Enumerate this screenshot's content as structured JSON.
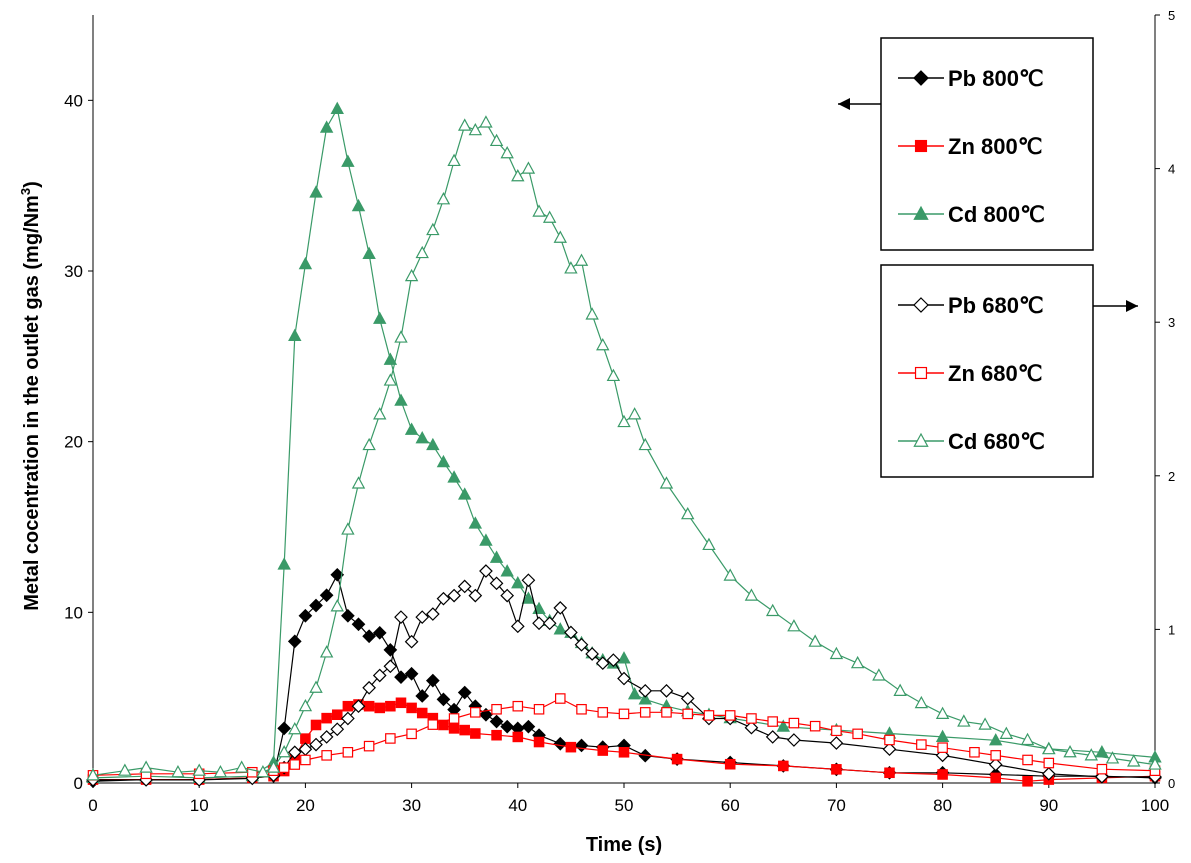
{
  "chart_data": {
    "type": "line",
    "xlabel": "Time (s)",
    "ylabel": "Metal cocentration in the outlet gas (mg/Nm",
    "ylabel_sup": "3",
    "ylabel_close": ")",
    "xlim": [
      0,
      100
    ],
    "ylim_left": [
      0,
      45
    ],
    "ylim_right": [
      0,
      5
    ],
    "x_ticks": [
      "0",
      "10",
      "20",
      "30",
      "40",
      "50",
      "60",
      "70",
      "80",
      "90",
      "100"
    ],
    "y_ticks_left": [
      "0",
      "10",
      "20",
      "30",
      "40"
    ],
    "y_ticks_right": [
      "0",
      "1",
      "2",
      "3",
      "4",
      "5"
    ],
    "legend_groups": [
      {
        "axis": "left",
        "entries": [
          "Pb 800℃",
          "Zn 800℃",
          "Cd 800℃"
        ]
      },
      {
        "axis": "right",
        "entries": [
          "Pb 680℃",
          "Zn 680℃",
          "Cd 680℃"
        ]
      }
    ],
    "series": [
      {
        "name": "Pb 800℃",
        "axis": "left",
        "color": "#000000",
        "marker": "diamond",
        "filled": true,
        "points": [
          [
            0,
            0.1
          ],
          [
            5,
            0.2
          ],
          [
            10,
            0.2
          ],
          [
            15,
            0.3
          ],
          [
            17,
            0.4
          ],
          [
            18,
            3.2
          ],
          [
            19,
            8.3
          ],
          [
            20,
            9.8
          ],
          [
            21,
            10.4
          ],
          [
            22,
            11.0
          ],
          [
            23,
            12.2
          ],
          [
            24,
            9.8
          ],
          [
            25,
            9.3
          ],
          [
            26,
            8.6
          ],
          [
            27,
            8.8
          ],
          [
            28,
            7.8
          ],
          [
            29,
            6.2
          ],
          [
            30,
            6.4
          ],
          [
            31,
            5.1
          ],
          [
            32,
            6.0
          ],
          [
            33,
            4.9
          ],
          [
            34,
            4.3
          ],
          [
            35,
            5.3
          ],
          [
            36,
            4.5
          ],
          [
            37,
            4.0
          ],
          [
            38,
            3.6
          ],
          [
            39,
            3.3
          ],
          [
            40,
            3.2
          ],
          [
            41,
            3.3
          ],
          [
            42,
            2.8
          ],
          [
            44,
            2.3
          ],
          [
            46,
            2.2
          ],
          [
            48,
            2.1
          ],
          [
            50,
            2.2
          ],
          [
            52,
            1.6
          ],
          [
            55,
            1.4
          ],
          [
            60,
            1.2
          ],
          [
            65,
            1.0
          ],
          [
            70,
            0.8
          ],
          [
            75,
            0.6
          ],
          [
            80,
            0.6
          ],
          [
            85,
            0.5
          ],
          [
            90,
            0.4
          ],
          [
            95,
            0.4
          ],
          [
            100,
            0.3
          ]
        ]
      },
      {
        "name": "Zn 800℃",
        "axis": "left",
        "color": "#ff0000",
        "marker": "square",
        "filled": true,
        "points": [
          [
            0,
            0.2
          ],
          [
            5,
            0.2
          ],
          [
            10,
            0.2
          ],
          [
            15,
            0.3
          ],
          [
            17,
            0.4
          ],
          [
            18,
            0.7
          ],
          [
            19,
            1.5
          ],
          [
            20,
            2.6
          ],
          [
            21,
            3.4
          ],
          [
            22,
            3.8
          ],
          [
            23,
            4.0
          ],
          [
            24,
            4.5
          ],
          [
            25,
            4.6
          ],
          [
            26,
            4.5
          ],
          [
            27,
            4.4
          ],
          [
            28,
            4.5
          ],
          [
            29,
            4.7
          ],
          [
            30,
            4.4
          ],
          [
            31,
            4.1
          ],
          [
            32,
            3.8
          ],
          [
            33,
            3.4
          ],
          [
            34,
            3.2
          ],
          [
            35,
            3.1
          ],
          [
            36,
            2.9
          ],
          [
            38,
            2.8
          ],
          [
            40,
            2.7
          ],
          [
            42,
            2.4
          ],
          [
            45,
            2.1
          ],
          [
            48,
            1.9
          ],
          [
            50,
            1.8
          ],
          [
            55,
            1.4
          ],
          [
            60,
            1.1
          ],
          [
            65,
            1.0
          ],
          [
            70,
            0.8
          ],
          [
            75,
            0.6
          ],
          [
            80,
            0.5
          ],
          [
            85,
            0.3
          ],
          [
            88,
            0.1
          ],
          [
            90,
            0.2
          ],
          [
            95,
            0.3
          ],
          [
            100,
            0.4
          ]
        ]
      },
      {
        "name": "Cd 800℃",
        "axis": "left",
        "color": "#3a9a68",
        "marker": "triangle",
        "filled": true,
        "points": [
          [
            0,
            0.3
          ],
          [
            5,
            0.4
          ],
          [
            10,
            0.3
          ],
          [
            15,
            0.4
          ],
          [
            17,
            1.2
          ],
          [
            18,
            12.8
          ],
          [
            19,
            26.2
          ],
          [
            20,
            30.4
          ],
          [
            21,
            34.6
          ],
          [
            22,
            38.4
          ],
          [
            23,
            39.5
          ],
          [
            24,
            36.4
          ],
          [
            25,
            33.8
          ],
          [
            26,
            31.0
          ],
          [
            27,
            27.2
          ],
          [
            28,
            24.8
          ],
          [
            29,
            22.4
          ],
          [
            30,
            20.7
          ],
          [
            31,
            20.2
          ],
          [
            32,
            19.8
          ],
          [
            33,
            18.8
          ],
          [
            34,
            17.9
          ],
          [
            35,
            16.9
          ],
          [
            36,
            15.2
          ],
          [
            37,
            14.2
          ],
          [
            38,
            13.2
          ],
          [
            39,
            12.4
          ],
          [
            40,
            11.7
          ],
          [
            41,
            10.8
          ],
          [
            42,
            10.2
          ],
          [
            43,
            9.5
          ],
          [
            44,
            9.0
          ],
          [
            45,
            8.8
          ],
          [
            46,
            8.2
          ],
          [
            47,
            7.6
          ],
          [
            48,
            7.2
          ],
          [
            49,
            7.0
          ],
          [
            50,
            7.3
          ],
          [
            51,
            5.2
          ],
          [
            52,
            4.9
          ],
          [
            54,
            4.5
          ],
          [
            56,
            4.2
          ],
          [
            58,
            4.0
          ],
          [
            60,
            3.8
          ],
          [
            65,
            3.3
          ],
          [
            70,
            3.1
          ],
          [
            75,
            2.9
          ],
          [
            80,
            2.7
          ],
          [
            85,
            2.5
          ],
          [
            90,
            2.0
          ],
          [
            95,
            1.8
          ],
          [
            100,
            1.5
          ]
        ]
      },
      {
        "name": "Pb 680℃",
        "axis": "right",
        "color": "#000000",
        "marker": "diamond",
        "filled": false,
        "points": [
          [
            0,
            0.02
          ],
          [
            5,
            0.02
          ],
          [
            10,
            0.02
          ],
          [
            15,
            0.03
          ],
          [
            17,
            0.05
          ],
          [
            18,
            0.1
          ],
          [
            19,
            0.2
          ],
          [
            20,
            0.22
          ],
          [
            21,
            0.25
          ],
          [
            22,
            0.3
          ],
          [
            23,
            0.35
          ],
          [
            24,
            0.42
          ],
          [
            25,
            0.5
          ],
          [
            26,
            0.62
          ],
          [
            27,
            0.7
          ],
          [
            28,
            0.76
          ],
          [
            29,
            1.08
          ],
          [
            30,
            0.92
          ],
          [
            31,
            1.08
          ],
          [
            32,
            1.1
          ],
          [
            33,
            1.2
          ],
          [
            34,
            1.22
          ],
          [
            35,
            1.28
          ],
          [
            36,
            1.22
          ],
          [
            37,
            1.38
          ],
          [
            38,
            1.3
          ],
          [
            39,
            1.22
          ],
          [
            40,
            1.02
          ],
          [
            41,
            1.32
          ],
          [
            42,
            1.04
          ],
          [
            43,
            1.04
          ],
          [
            44,
            1.14
          ],
          [
            45,
            0.98
          ],
          [
            46,
            0.9
          ],
          [
            47,
            0.84
          ],
          [
            48,
            0.78
          ],
          [
            49,
            0.8
          ],
          [
            50,
            0.68
          ],
          [
            52,
            0.6
          ],
          [
            54,
            0.6
          ],
          [
            56,
            0.55
          ],
          [
            58,
            0.42
          ],
          [
            60,
            0.42
          ],
          [
            62,
            0.36
          ],
          [
            64,
            0.3
          ],
          [
            66,
            0.28
          ],
          [
            70,
            0.26
          ],
          [
            75,
            0.22
          ],
          [
            80,
            0.18
          ],
          [
            85,
            0.12
          ],
          [
            90,
            0.06
          ],
          [
            95,
            0.04
          ],
          [
            100,
            0.04
          ]
        ]
      },
      {
        "name": "Zn 680℃",
        "axis": "right",
        "color": "#ff0000",
        "marker": "square",
        "filled": false,
        "points": [
          [
            0,
            0.05
          ],
          [
            5,
            0.06
          ],
          [
            10,
            0.06
          ],
          [
            15,
            0.07
          ],
          [
            17,
            0.08
          ],
          [
            18,
            0.1
          ],
          [
            19,
            0.12
          ],
          [
            20,
            0.15
          ],
          [
            22,
            0.18
          ],
          [
            24,
            0.2
          ],
          [
            26,
            0.24
          ],
          [
            28,
            0.29
          ],
          [
            30,
            0.32
          ],
          [
            32,
            0.38
          ],
          [
            34,
            0.42
          ],
          [
            36,
            0.46
          ],
          [
            38,
            0.48
          ],
          [
            40,
            0.5
          ],
          [
            42,
            0.48
          ],
          [
            44,
            0.55
          ],
          [
            46,
            0.48
          ],
          [
            48,
            0.46
          ],
          [
            50,
            0.45
          ],
          [
            52,
            0.46
          ],
          [
            54,
            0.46
          ],
          [
            56,
            0.45
          ],
          [
            58,
            0.44
          ],
          [
            60,
            0.44
          ],
          [
            62,
            0.42
          ],
          [
            64,
            0.4
          ],
          [
            66,
            0.39
          ],
          [
            68,
            0.37
          ],
          [
            70,
            0.34
          ],
          [
            72,
            0.32
          ],
          [
            75,
            0.28
          ],
          [
            78,
            0.25
          ],
          [
            80,
            0.23
          ],
          [
            83,
            0.2
          ],
          [
            85,
            0.18
          ],
          [
            88,
            0.15
          ],
          [
            90,
            0.13
          ],
          [
            95,
            0.09
          ],
          [
            100,
            0.08
          ]
        ]
      },
      {
        "name": "Cd 680℃",
        "axis": "right",
        "color": "#3a9a68",
        "marker": "triangle",
        "filled": false,
        "points": [
          [
            0,
            0.05
          ],
          [
            3,
            0.08
          ],
          [
            5,
            0.1
          ],
          [
            8,
            0.07
          ],
          [
            10,
            0.08
          ],
          [
            12,
            0.07
          ],
          [
            14,
            0.1
          ],
          [
            16,
            0.07
          ],
          [
            17,
            0.1
          ],
          [
            18,
            0.2
          ],
          [
            19,
            0.35
          ],
          [
            20,
            0.5
          ],
          [
            21,
            0.62
          ],
          [
            22,
            0.85
          ],
          [
            23,
            1.15
          ],
          [
            24,
            1.65
          ],
          [
            25,
            1.95
          ],
          [
            26,
            2.2
          ],
          [
            27,
            2.4
          ],
          [
            28,
            2.62
          ],
          [
            29,
            2.9
          ],
          [
            30,
            3.3
          ],
          [
            31,
            3.45
          ],
          [
            32,
            3.6
          ],
          [
            33,
            3.8
          ],
          [
            34,
            4.05
          ],
          [
            35,
            4.28
          ],
          [
            36,
            4.25
          ],
          [
            37,
            4.3
          ],
          [
            38,
            4.18
          ],
          [
            39,
            4.1
          ],
          [
            40,
            3.95
          ],
          [
            41,
            4.0
          ],
          [
            42,
            3.72
          ],
          [
            43,
            3.68
          ],
          [
            44,
            3.55
          ],
          [
            45,
            3.35
          ],
          [
            46,
            3.4
          ],
          [
            47,
            3.05
          ],
          [
            48,
            2.85
          ],
          [
            49,
            2.65
          ],
          [
            50,
            2.35
          ],
          [
            51,
            2.4
          ],
          [
            52,
            2.2
          ],
          [
            54,
            1.95
          ],
          [
            56,
            1.75
          ],
          [
            58,
            1.55
          ],
          [
            60,
            1.35
          ],
          [
            62,
            1.22
          ],
          [
            64,
            1.12
          ],
          [
            66,
            1.02
          ],
          [
            68,
            0.92
          ],
          [
            70,
            0.84
          ],
          [
            72,
            0.78
          ],
          [
            74,
            0.7
          ],
          [
            76,
            0.6
          ],
          [
            78,
            0.52
          ],
          [
            80,
            0.45
          ],
          [
            82,
            0.4
          ],
          [
            84,
            0.38
          ],
          [
            86,
            0.32
          ],
          [
            88,
            0.28
          ],
          [
            90,
            0.22
          ],
          [
            92,
            0.2
          ],
          [
            94,
            0.18
          ],
          [
            96,
            0.16
          ],
          [
            98,
            0.14
          ],
          [
            100,
            0.12
          ]
        ]
      }
    ]
  }
}
